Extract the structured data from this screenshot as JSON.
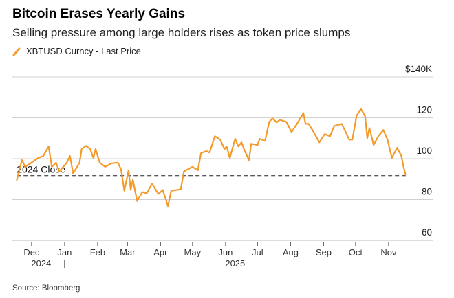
{
  "title": "Bitcoin Erases Yearly Gains",
  "subtitle": "Selling pressure among large holders rises as token price slumps",
  "source": "Source: Bloomberg",
  "colors": {
    "series": "#f39a2b",
    "reference": "#222222",
    "grid": "#d0d0d0"
  },
  "chart_data": {
    "type": "line",
    "legend": {
      "placement": "top-left",
      "icon": "orange-slash-icon"
    },
    "series": [
      {
        "name": "XBTUSD Curncy - Last Price",
        "points": [
          [
            "2024-11-17",
            89.3
          ],
          [
            "2024-11-22",
            99.3
          ],
          [
            "2024-11-25",
            96
          ],
          [
            "2024-11-30",
            97.7
          ],
          [
            "2024-12-07",
            100.3
          ],
          [
            "2024-12-12",
            101.3
          ],
          [
            "2024-12-17",
            106
          ],
          [
            "2024-12-20",
            96
          ],
          [
            "2024-12-24",
            98
          ],
          [
            "2024-12-27",
            93.7
          ],
          [
            "2025-01-03",
            98
          ],
          [
            "2025-01-06",
            101.3
          ],
          [
            "2025-01-09",
            92.7
          ],
          [
            "2025-01-15",
            98
          ],
          [
            "2025-01-17",
            104.7
          ],
          [
            "2025-01-21",
            106.3
          ],
          [
            "2025-01-25",
            104.7
          ],
          [
            "2025-01-28",
            100.3
          ],
          [
            "2025-01-30",
            104.7
          ],
          [
            "2025-02-03",
            98
          ],
          [
            "2025-02-08",
            96
          ],
          [
            "2025-02-14",
            97.7
          ],
          [
            "2025-02-20",
            98
          ],
          [
            "2025-02-23",
            94.7
          ],
          [
            "2025-02-26",
            84.3
          ],
          [
            "2025-03-02",
            94.3
          ],
          [
            "2025-03-04",
            84.7
          ],
          [
            "2025-03-06",
            89.7
          ],
          [
            "2025-03-10",
            79.3
          ],
          [
            "2025-03-15",
            83.7
          ],
          [
            "2025-03-19",
            83
          ],
          [
            "2025-03-24",
            87.7
          ],
          [
            "2025-03-30",
            82.7
          ],
          [
            "2025-04-03",
            84.7
          ],
          [
            "2025-04-08",
            76.7
          ],
          [
            "2025-04-11",
            84.3
          ],
          [
            "2025-04-20",
            85
          ],
          [
            "2025-04-23",
            93.7
          ],
          [
            "2025-05-01",
            96
          ],
          [
            "2025-05-06",
            94.3
          ],
          [
            "2025-05-09",
            102.7
          ],
          [
            "2025-05-14",
            103.7
          ],
          [
            "2025-05-17",
            103
          ],
          [
            "2025-05-22",
            111
          ],
          [
            "2025-05-27",
            109.3
          ],
          [
            "2025-05-31",
            104.7
          ],
          [
            "2025-06-02",
            106
          ],
          [
            "2025-06-05",
            100.3
          ],
          [
            "2025-06-10",
            109.7
          ],
          [
            "2025-06-13",
            106
          ],
          [
            "2025-06-16",
            108
          ],
          [
            "2025-06-19",
            103.7
          ],
          [
            "2025-06-23",
            99.3
          ],
          [
            "2025-06-25",
            107.3
          ],
          [
            "2025-07-01",
            106.7
          ],
          [
            "2025-07-03",
            109.7
          ],
          [
            "2025-07-08",
            108.7
          ],
          [
            "2025-07-12",
            118
          ],
          [
            "2025-07-15",
            119.7
          ],
          [
            "2025-07-19",
            117.7
          ],
          [
            "2025-07-22",
            119
          ],
          [
            "2025-07-28",
            118
          ],
          [
            "2025-08-02",
            113
          ],
          [
            "2025-08-07",
            117
          ],
          [
            "2025-08-13",
            122.3
          ],
          [
            "2025-08-15",
            117
          ],
          [
            "2025-08-18",
            117
          ],
          [
            "2025-08-23",
            112.7
          ],
          [
            "2025-08-28",
            108
          ],
          [
            "2025-09-02",
            112
          ],
          [
            "2025-09-07",
            111
          ],
          [
            "2025-09-11",
            116
          ],
          [
            "2025-09-18",
            117
          ],
          [
            "2025-09-22",
            112.7
          ],
          [
            "2025-09-25",
            109.3
          ],
          [
            "2025-09-28",
            109.3
          ],
          [
            "2025-10-02",
            121
          ],
          [
            "2025-10-06",
            124.3
          ],
          [
            "2025-10-10",
            120.7
          ],
          [
            "2025-10-12",
            110
          ],
          [
            "2025-10-14",
            115
          ],
          [
            "2025-10-18",
            106.7
          ],
          [
            "2025-10-22",
            110.7
          ],
          [
            "2025-10-27",
            114
          ],
          [
            "2025-10-31",
            109.3
          ],
          [
            "2025-11-04",
            100.3
          ],
          [
            "2025-11-09",
            105.3
          ],
          [
            "2025-11-13",
            101.3
          ],
          [
            "2025-11-15",
            96
          ],
          [
            "2025-11-17",
            92
          ]
        ]
      }
    ],
    "reference_line": {
      "label": "2024 Close",
      "value": 91.5,
      "style": "dashed"
    },
    "xlim": [
      "2024-11-13",
      "2025-12-13"
    ],
    "ylim": [
      60,
      140
    ],
    "y_unit": "$K",
    "y_ticks": [
      {
        "value": 140,
        "label": "$140K"
      },
      {
        "value": 120,
        "label": "120"
      },
      {
        "value": 100,
        "label": "100"
      },
      {
        "value": 80,
        "label": "80"
      },
      {
        "value": 60,
        "label": "60"
      }
    ],
    "x_ticks": [
      {
        "date": "2024-12-01",
        "label": "Dec"
      },
      {
        "date": "2025-01-01",
        "label": "Jan"
      },
      {
        "date": "2025-02-01",
        "label": "Feb"
      },
      {
        "date": "2025-03-01",
        "label": "Mar"
      },
      {
        "date": "2025-04-01",
        "label": "Apr"
      },
      {
        "date": "2025-05-01",
        "label": "May"
      },
      {
        "date": "2025-06-01",
        "label": "Jun"
      },
      {
        "date": "2025-07-01",
        "label": "Jul"
      },
      {
        "date": "2025-08-01",
        "label": "Aug"
      },
      {
        "date": "2025-09-01",
        "label": "Sep"
      },
      {
        "date": "2025-10-01",
        "label": "Oct"
      },
      {
        "date": "2025-11-01",
        "label": "Nov"
      }
    ],
    "year_labels": [
      {
        "date": "2024-12-10",
        "label": "2024"
      },
      {
        "date": "2025-06-10",
        "label": "2025"
      }
    ],
    "year_divider": {
      "date": "2025-01-01",
      "label": "|"
    },
    "grid": "horizontal"
  }
}
